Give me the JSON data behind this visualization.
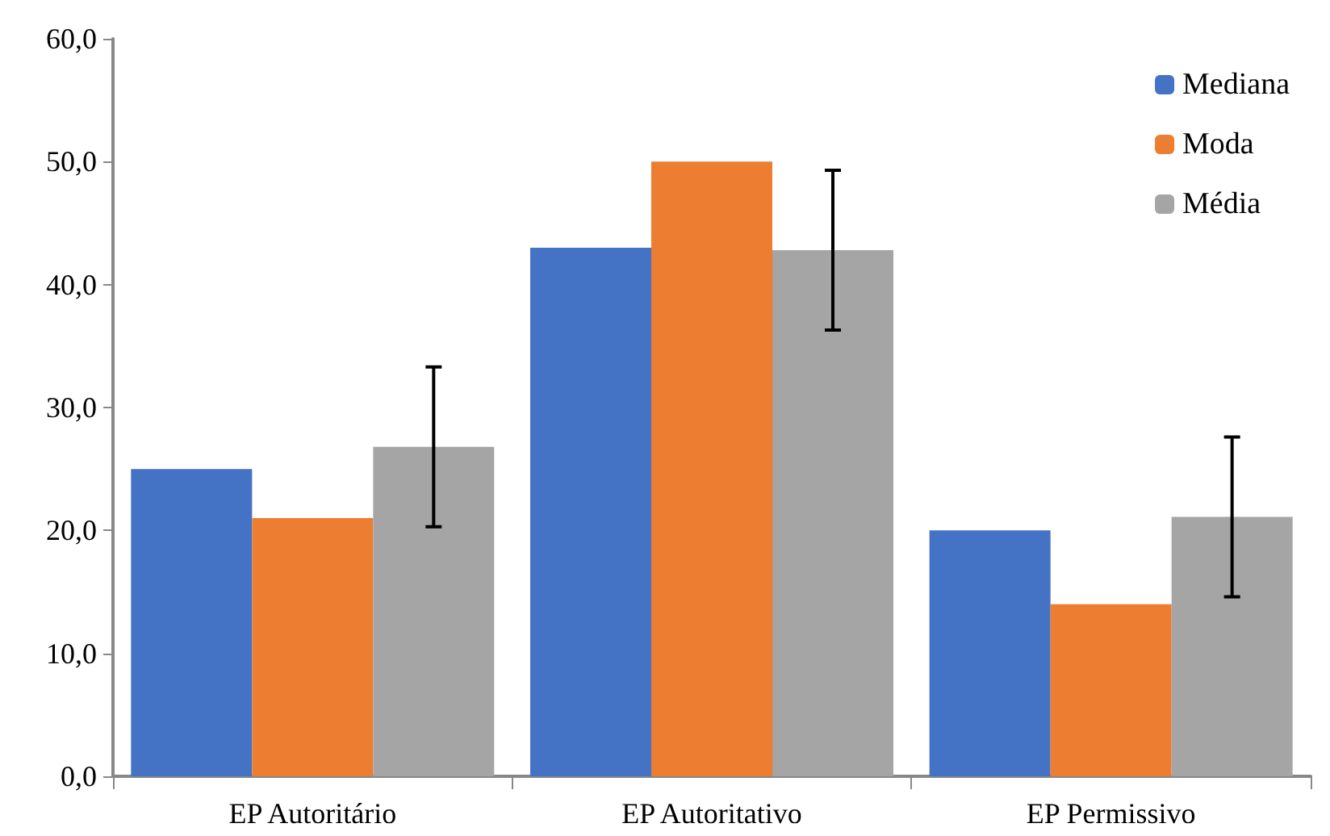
{
  "chart_data": {
    "type": "bar",
    "categories": [
      "EP Autoritário",
      "EP Autoritativo",
      "EP Permissivo"
    ],
    "series": [
      {
        "name": "Mediana",
        "color": "#4472c4",
        "values": [
          25,
          43,
          20
        ]
      },
      {
        "name": "Moda",
        "color": "#ed7d31",
        "values": [
          21,
          50,
          14
        ]
      },
      {
        "name": "Média",
        "color": "#a5a5a5",
        "values": [
          26.8,
          42.8,
          21.1
        ],
        "errors": [
          6.5,
          6.5,
          6.5
        ]
      }
    ],
    "ylim": [
      0,
      60
    ],
    "yticks": [
      {
        "value": 0,
        "label": "0,0"
      },
      {
        "value": 10,
        "label": "10,0"
      },
      {
        "value": 20,
        "label": "20,0"
      },
      {
        "value": 30,
        "label": "30,0"
      },
      {
        "value": 40,
        "label": "40,0"
      },
      {
        "value": 50,
        "label": "50,0"
      },
      {
        "value": 60,
        "label": "60,0"
      }
    ],
    "grid": false,
    "legend": "top right"
  }
}
